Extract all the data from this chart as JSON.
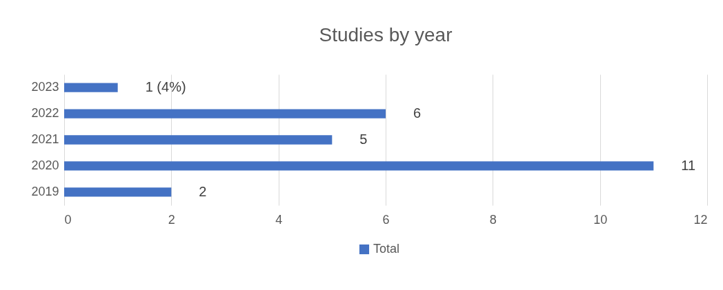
{
  "chart_data": {
    "type": "bar",
    "orientation": "horizontal",
    "title": "Studies by year",
    "categories": [
      "2023",
      "2022",
      "2021",
      "2020",
      "2019"
    ],
    "series": [
      {
        "name": "Total",
        "color": "#4472c4",
        "values": [
          1,
          6,
          5,
          11,
          2
        ],
        "value_labels": [
          "1 (4%)",
          "6",
          "5",
          "11",
          "2"
        ]
      }
    ],
    "xlim": [
      0,
      12
    ],
    "xticks": [
      0,
      2,
      4,
      6,
      8,
      10,
      12
    ],
    "grid": "x",
    "legend": "bottom"
  }
}
